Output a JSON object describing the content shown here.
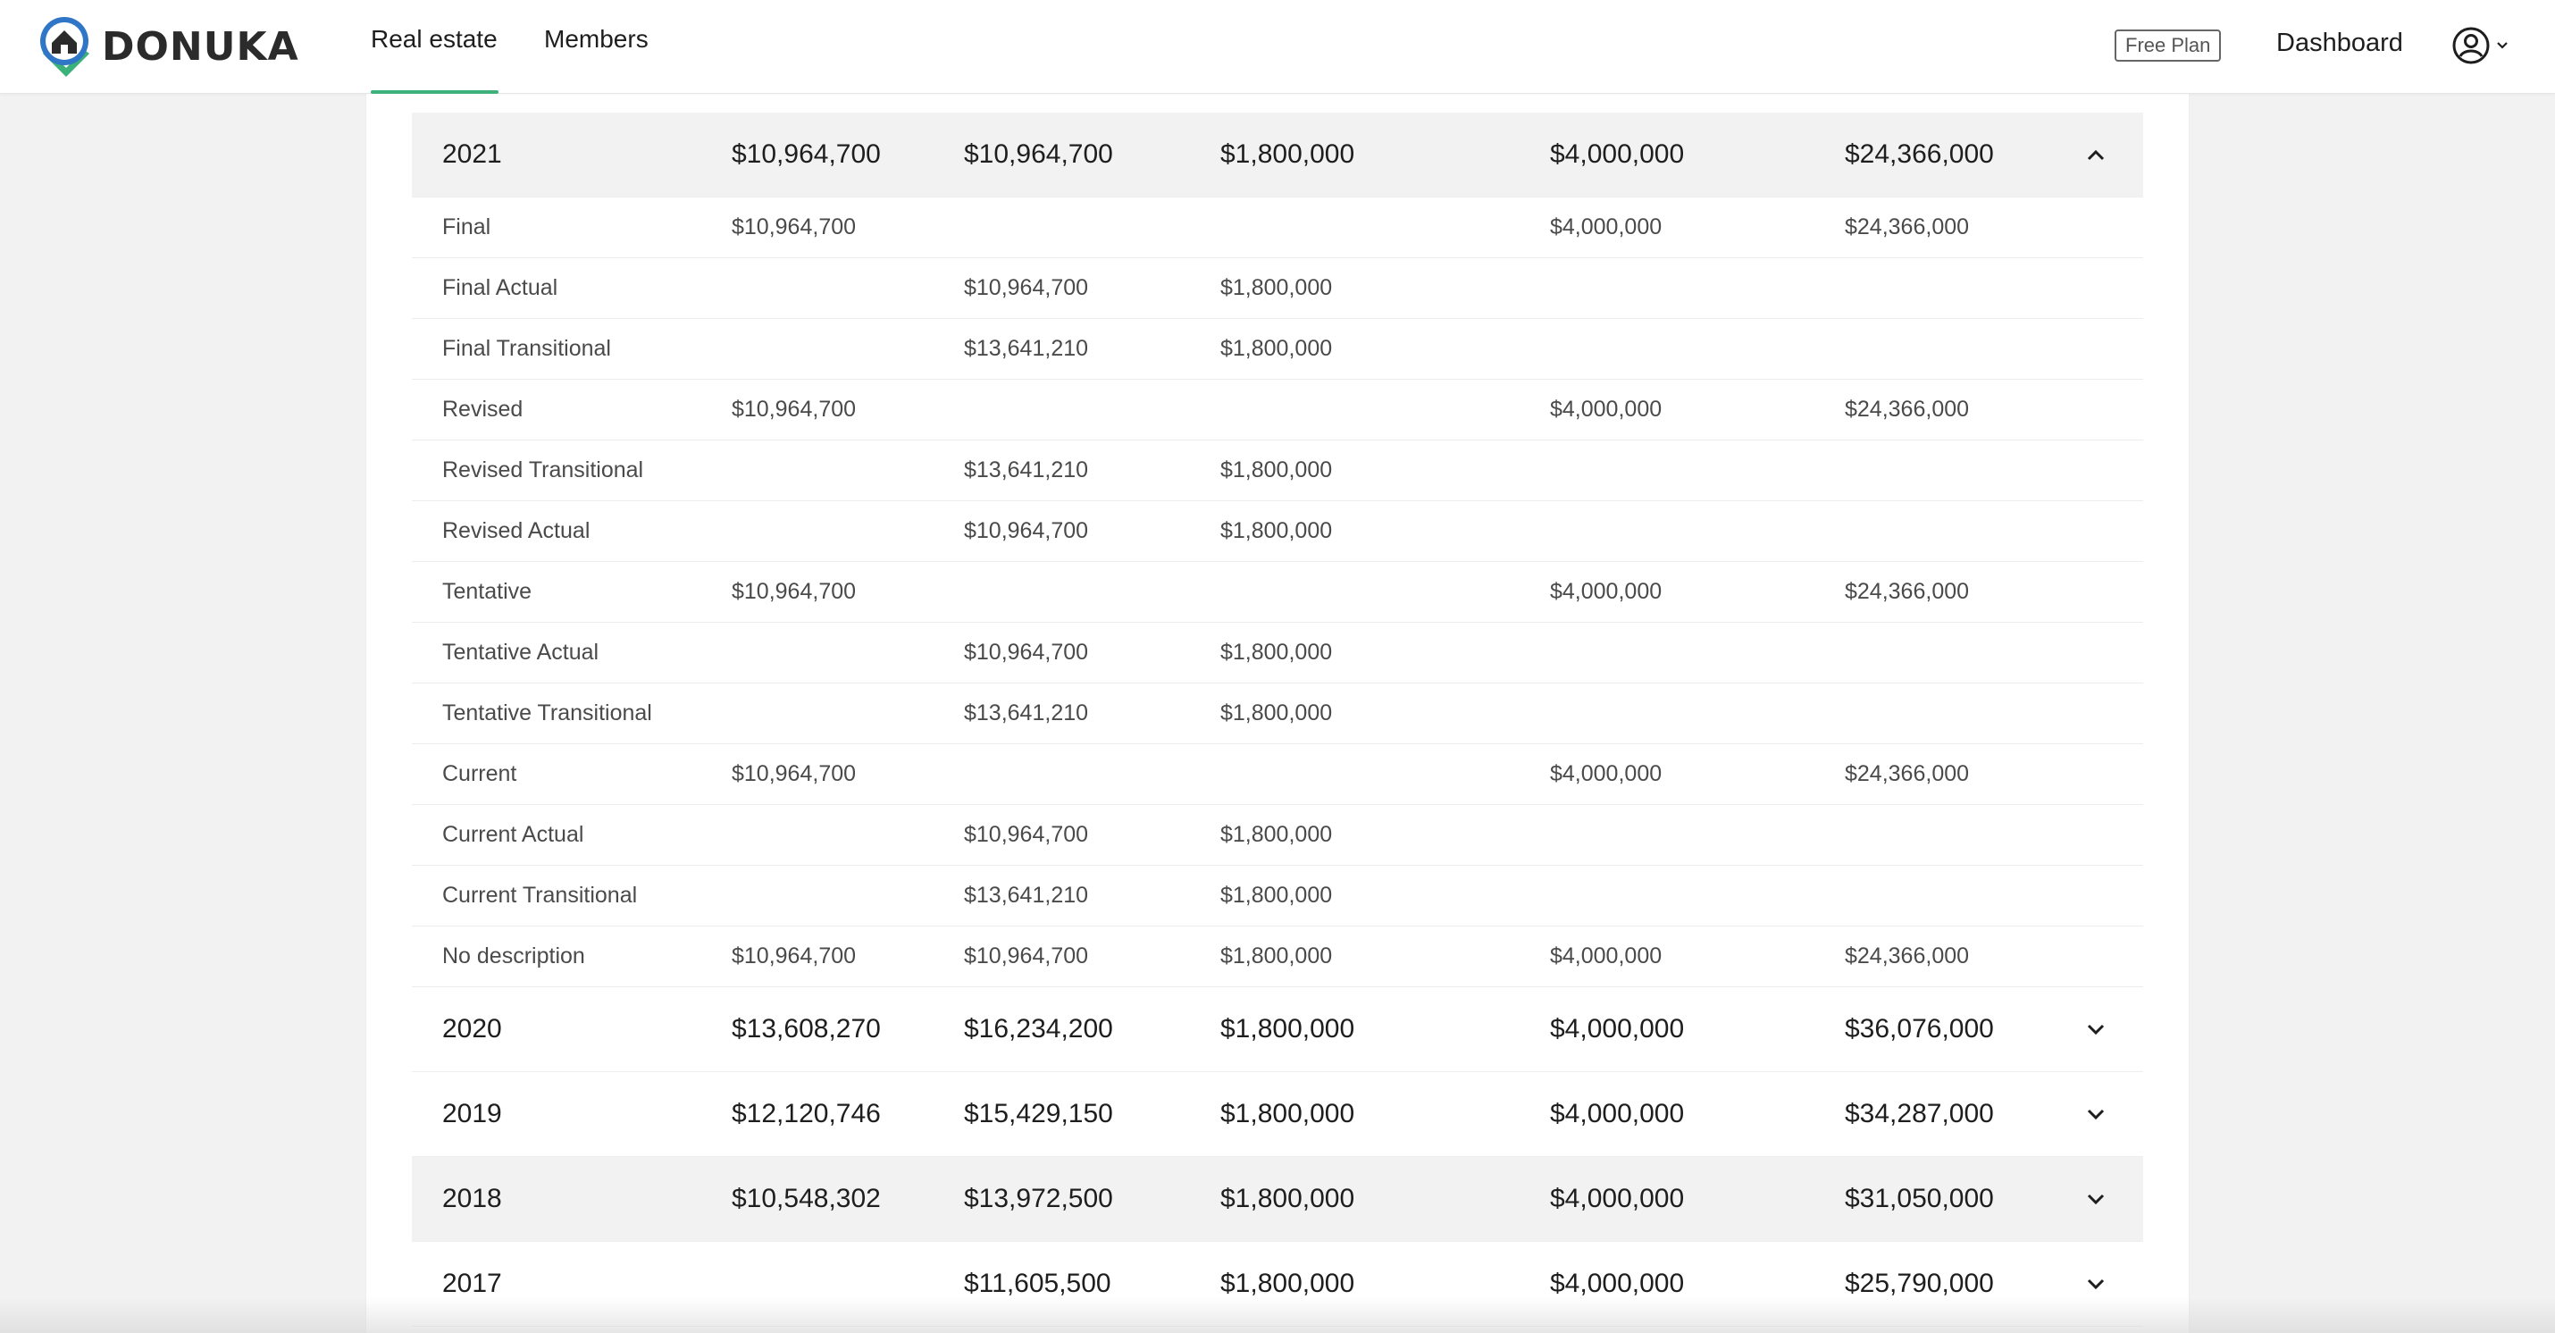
{
  "brand": {
    "name": "DONUKA"
  },
  "nav": {
    "tabs": [
      {
        "label": "Real estate",
        "active": true
      },
      {
        "label": "Members",
        "active": false
      }
    ],
    "plan_badge": "Free Plan",
    "dashboard": "Dashboard",
    "user_icon": "user-circle-icon",
    "accent_color": "#3cb179"
  },
  "table": {
    "years": [
      {
        "year": "2021",
        "c1": "$10,964,700",
        "c2": "$10,964,700",
        "c3": "$1,800,000",
        "c4": "$4,000,000",
        "c5": "$24,366,000",
        "expanded": true,
        "details": [
          {
            "label": "Final",
            "c1": "$10,964,700",
            "c2": "",
            "c3": "",
            "c4": "$4,000,000",
            "c5": "$24,366,000"
          },
          {
            "label": "Final Actual",
            "c1": "",
            "c2": "$10,964,700",
            "c3": "$1,800,000",
            "c4": "",
            "c5": ""
          },
          {
            "label": "Final Transitional",
            "c1": "",
            "c2": "$13,641,210",
            "c3": "$1,800,000",
            "c4": "",
            "c5": ""
          },
          {
            "label": "Revised",
            "c1": "$10,964,700",
            "c2": "",
            "c3": "",
            "c4": "$4,000,000",
            "c5": "$24,366,000"
          },
          {
            "label": "Revised Transitional",
            "c1": "",
            "c2": "$13,641,210",
            "c3": "$1,800,000",
            "c4": "",
            "c5": ""
          },
          {
            "label": "Revised Actual",
            "c1": "",
            "c2": "$10,964,700",
            "c3": "$1,800,000",
            "c4": "",
            "c5": ""
          },
          {
            "label": "Tentative",
            "c1": "$10,964,700",
            "c2": "",
            "c3": "",
            "c4": "$4,000,000",
            "c5": "$24,366,000"
          },
          {
            "label": "Tentative Actual",
            "c1": "",
            "c2": "$10,964,700",
            "c3": "$1,800,000",
            "c4": "",
            "c5": ""
          },
          {
            "label": "Tentative Transitional",
            "c1": "",
            "c2": "$13,641,210",
            "c3": "$1,800,000",
            "c4": "",
            "c5": ""
          },
          {
            "label": "Current",
            "c1": "$10,964,700",
            "c2": "",
            "c3": "",
            "c4": "$4,000,000",
            "c5": "$24,366,000"
          },
          {
            "label": "Current Actual",
            "c1": "",
            "c2": "$10,964,700",
            "c3": "$1,800,000",
            "c4": "",
            "c5": ""
          },
          {
            "label": "Current Transitional",
            "c1": "",
            "c2": "$13,641,210",
            "c3": "$1,800,000",
            "c4": "",
            "c5": ""
          },
          {
            "label": "No description",
            "c1": "$10,964,700",
            "c2": "$10,964,700",
            "c3": "$1,800,000",
            "c4": "$4,000,000",
            "c5": "$24,366,000"
          }
        ]
      },
      {
        "year": "2020",
        "c1": "$13,608,270",
        "c2": "$16,234,200",
        "c3": "$1,800,000",
        "c4": "$4,000,000",
        "c5": "$36,076,000",
        "expanded": false
      },
      {
        "year": "2019",
        "c1": "$12,120,746",
        "c2": "$15,429,150",
        "c3": "$1,800,000",
        "c4": "$4,000,000",
        "c5": "$34,287,000",
        "expanded": false
      },
      {
        "year": "2018",
        "c1": "$10,548,302",
        "c2": "$13,972,500",
        "c3": "$1,800,000",
        "c4": "$4,000,000",
        "c5": "$31,050,000",
        "expanded": false,
        "hovered": true
      },
      {
        "year": "2017",
        "c1": "",
        "c2": "$11,605,500",
        "c3": "$1,800,000",
        "c4": "$4,000,000",
        "c5": "$25,790,000",
        "expanded": false
      }
    ]
  }
}
